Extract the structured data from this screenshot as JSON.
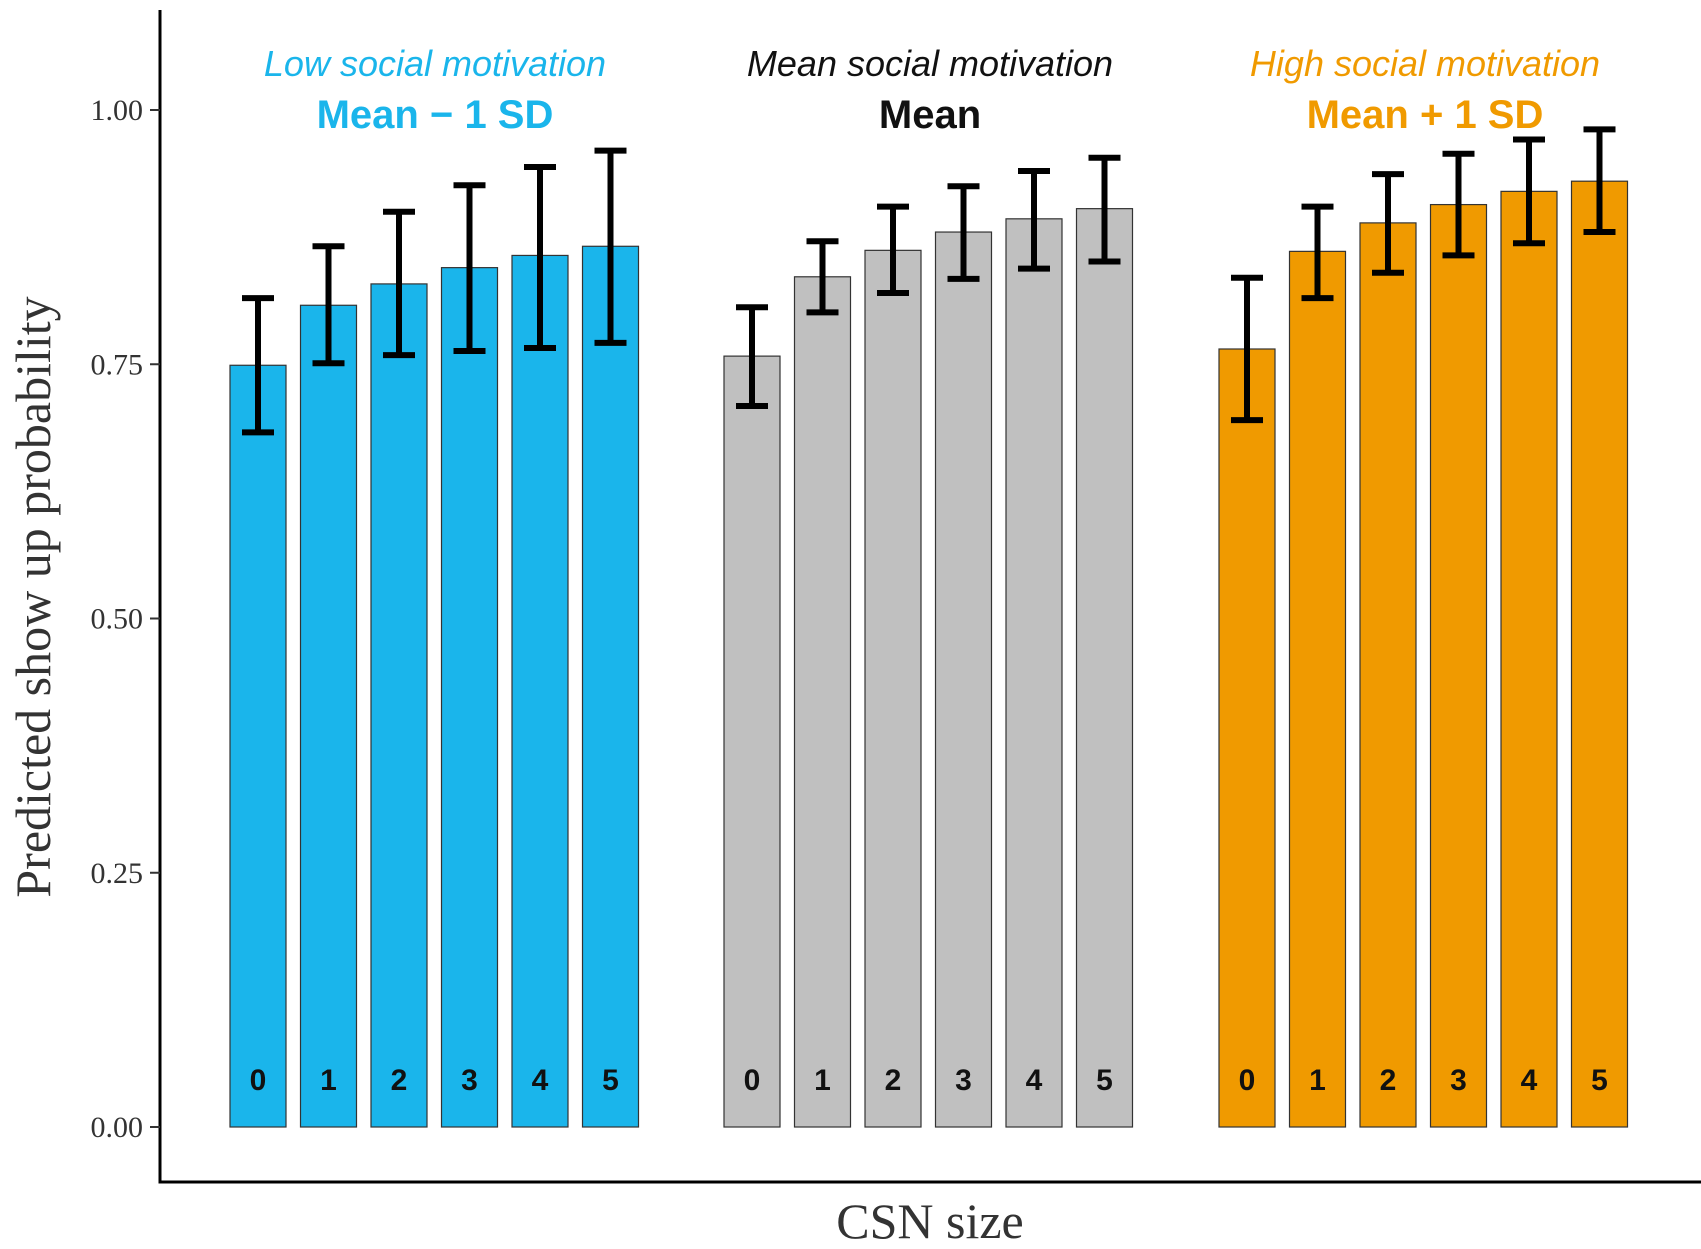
{
  "chart_data": {
    "type": "bar",
    "xlabel": "CSN size",
    "ylabel": "Predicted show up probability",
    "ylim": [
      -0.03,
      1.1
    ],
    "yticks": [
      "0.00",
      "0.25",
      "0.50",
      "0.75",
      "1.00"
    ],
    "grid": false,
    "categories": [
      "0",
      "1",
      "2",
      "3",
      "4",
      "5"
    ],
    "groups": [
      {
        "subtitle": "Low social motivation",
        "title": "Mean − 1 SD",
        "color": "#1AB5EB",
        "values": [
          0.749,
          0.808,
          0.829,
          0.845,
          0.857,
          0.866
        ],
        "ci_low": [
          0.683,
          0.751,
          0.759,
          0.763,
          0.766,
          0.771
        ],
        "ci_high": [
          0.815,
          0.866,
          0.9,
          0.926,
          0.944,
          0.96
        ]
      },
      {
        "subtitle": "Mean social motivation",
        "title": "Mean",
        "color": "#C0C0C0",
        "values": [
          0.758,
          0.836,
          0.862,
          0.88,
          0.893,
          0.903
        ],
        "ci_low": [
          0.709,
          0.801,
          0.82,
          0.834,
          0.844,
          0.851
        ],
        "ci_high": [
          0.806,
          0.871,
          0.905,
          0.925,
          0.94,
          0.953
        ]
      },
      {
        "subtitle": "High social motivation",
        "title": "Mean + 1 SD",
        "color": "#F09A00",
        "values": [
          0.765,
          0.861,
          0.889,
          0.907,
          0.92,
          0.93
        ],
        "ci_low": [
          0.695,
          0.815,
          0.84,
          0.857,
          0.869,
          0.88
        ],
        "ci_high": [
          0.835,
          0.905,
          0.937,
          0.957,
          0.971,
          0.981
        ]
      }
    ]
  }
}
